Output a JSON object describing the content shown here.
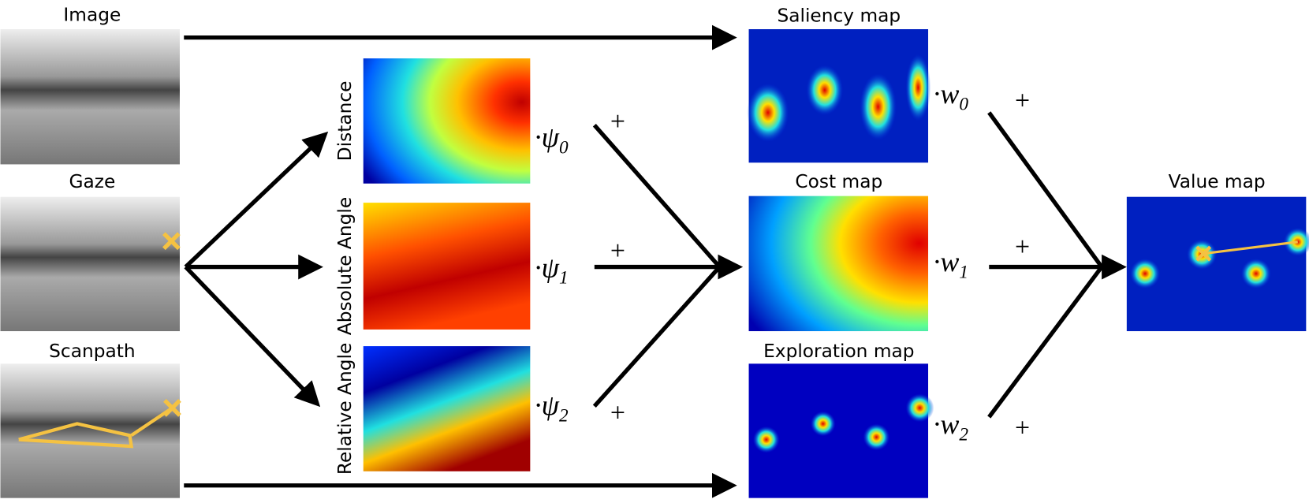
{
  "inputs": [
    {
      "title": "Image"
    },
    {
      "title": "Gaze"
    },
    {
      "title": "Scanpath"
    }
  ],
  "features": [
    {
      "label": "Distance",
      "symbol": "·ψ",
      "sub": "0",
      "plus": "+"
    },
    {
      "label": "Absolute Angle",
      "symbol": "·ψ",
      "sub": "1",
      "plus": "+"
    },
    {
      "label": "Relative Angle",
      "symbol": "·ψ",
      "sub": "2",
      "plus": "+"
    }
  ],
  "maps": [
    {
      "title": "Saliency map",
      "symbol": "·w",
      "sub": "0",
      "plus": "+"
    },
    {
      "title": "Cost map",
      "symbol": "·w",
      "sub": "1",
      "plus": "+"
    },
    {
      "title": "Exploration map",
      "symbol": "·w",
      "sub": "2",
      "plus": "+"
    }
  ],
  "output": {
    "title": "Value map"
  }
}
